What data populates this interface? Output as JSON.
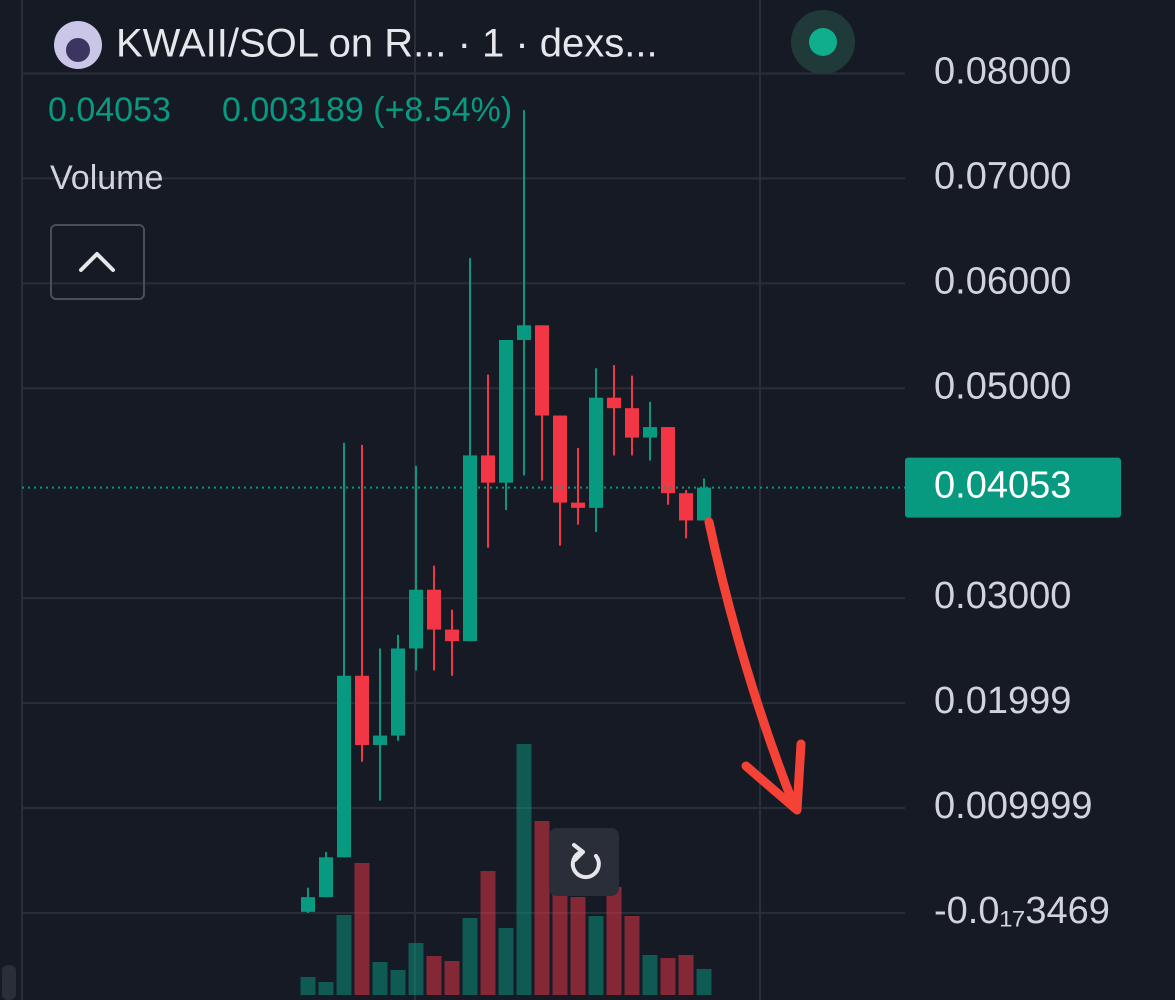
{
  "chart_data": {
    "type": "candlestick",
    "title": "KWAII/SOL on R... · 1 · dexs...",
    "last_price": 0.04053,
    "change": "0.003189 (+8.54%)",
    "volume_label": "Volume",
    "up_color": "#089981",
    "down_color": "#f23645",
    "ylim": [
      -0.0083,
      0.087
    ],
    "yticks": [
      {
        "value": 0.08,
        "label": "0.08000"
      },
      {
        "value": 0.07,
        "label": "0.07000"
      },
      {
        "value": 0.06,
        "label": "0.06000"
      },
      {
        "value": 0.05,
        "label": "0.05000"
      },
      {
        "value": 0.03,
        "label": "0.03000"
      },
      {
        "value": 0.01999,
        "label": "0.01999"
      },
      {
        "value": 0.009999,
        "label": "0.009999"
      },
      {
        "value": -3.469e-18,
        "label": "-0.0₁₇3469"
      }
    ],
    "grid": true,
    "open": [
      0.0001,
      0.0015,
      0.0053,
      0.0226,
      0.016,
      0.0169,
      0.0252,
      0.0308,
      0.027,
      0.0259,
      0.0436,
      0.041,
      0.0546,
      0.056,
      0.0474,
      0.0391,
      0.0386,
      0.0491,
      0.0481,
      0.0453,
      0.0463,
      0.04,
      0.0374
    ],
    "high": [
      0.0024,
      0.0058,
      0.0448,
      0.0446,
      0.0252,
      0.0265,
      0.0426,
      0.0331,
      0.0289,
      0.0624,
      0.0513,
      0.0546,
      0.0765,
      0.056,
      0.0474,
      0.0443,
      0.0519,
      0.0522,
      0.0512,
      0.0487,
      0.0463,
      0.0403,
      0.0414
    ],
    "low": [
      0.0,
      0.0015,
      0.0053,
      0.0144,
      0.0107,
      0.0164,
      0.0231,
      0.0231,
      0.0226,
      0.0259,
      0.0348,
      0.0384,
      0.0417,
      0.0412,
      0.035,
      0.037,
      0.0363,
      0.0436,
      0.0436,
      0.0431,
      0.0389,
      0.0357,
      0.0374
    ],
    "close": [
      0.0015,
      0.0053,
      0.0226,
      0.016,
      0.0169,
      0.0252,
      0.0308,
      0.027,
      0.0259,
      0.0436,
      0.041,
      0.0546,
      0.056,
      0.0474,
      0.0391,
      0.0386,
      0.0491,
      0.0481,
      0.0453,
      0.0463,
      0.04,
      0.0374,
      0.04053
    ],
    "volume": [
      18,
      13,
      80,
      132,
      33,
      25,
      52,
      39,
      34,
      77,
      124,
      67,
      251,
      174,
      127,
      98,
      79,
      108,
      79,
      40,
      37,
      40,
      26
    ]
  }
}
